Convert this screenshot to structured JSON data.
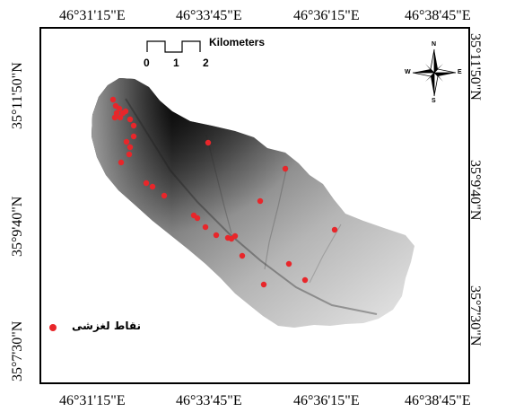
{
  "map": {
    "top_labels": [
      "46°31'15\"E",
      "46°33'45\"E",
      "46°36'15\"E",
      "46°38'45\"E"
    ],
    "bottom_labels": [
      "46°31'15\"E",
      "46°33'45\"E",
      "46°36'15\"E",
      "46°38'45\"E"
    ],
    "left_labels": [
      "35°11'50\"N",
      "35°9'40\"N",
      "35°7'30\"N"
    ],
    "right_labels": [
      "35°11'50\"N",
      "35°9'40\"N",
      "35°7'30\"N"
    ]
  },
  "scalebar": {
    "unit": "Kilometers",
    "ticks": [
      "0",
      "1",
      "2"
    ]
  },
  "north_arrow": {
    "n": "N",
    "s": "S",
    "e": "E",
    "w": "W",
    "icon": "compass-rose-icon"
  },
  "legend": {
    "label": "نقاط لغزشی",
    "color": "#e8262a"
  },
  "colors": {
    "point": "#e8262a",
    "relief_dark": "#0a0a0a",
    "relief_light": "#e6e6e6"
  }
}
